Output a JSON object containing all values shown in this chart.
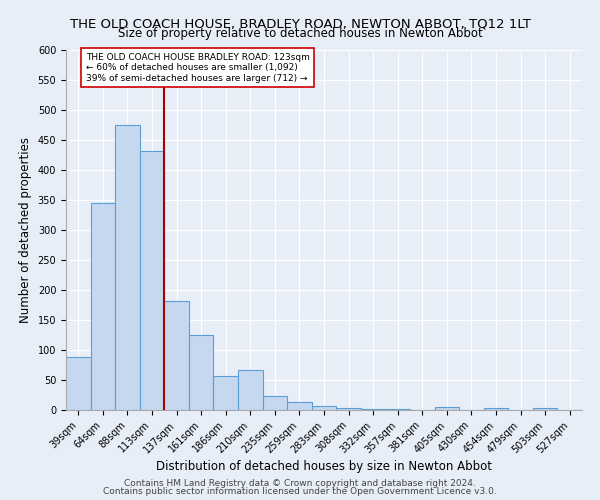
{
  "title": "THE OLD COACH HOUSE, BRADLEY ROAD, NEWTON ABBOT, TQ12 1LT",
  "subtitle": "Size of property relative to detached houses in Newton Abbot",
  "xlabel": "Distribution of detached houses by size in Newton Abbot",
  "ylabel": "Number of detached properties",
  "footer_line1": "Contains HM Land Registry data © Crown copyright and database right 2024.",
  "footer_line2": "Contains public sector information licensed under the Open Government Licence v3.0.",
  "categories": [
    "39sqm",
    "64sqm",
    "88sqm",
    "113sqm",
    "137sqm",
    "161sqm",
    "186sqm",
    "210sqm",
    "235sqm",
    "259sqm",
    "283sqm",
    "308sqm",
    "332sqm",
    "357sqm",
    "381sqm",
    "405sqm",
    "430sqm",
    "454sqm",
    "479sqm",
    "503sqm",
    "527sqm"
  ],
  "values": [
    88,
    345,
    475,
    432,
    182,
    125,
    56,
    67,
    23,
    13,
    7,
    4,
    1,
    1,
    0,
    5,
    0,
    4,
    0,
    4,
    0
  ],
  "bar_color": "#c5d8f0",
  "bar_edge_color": "#5a9fd4",
  "annotation_text": "THE OLD COACH HOUSE BRADLEY ROAD: 123sqm\n← 60% of detached houses are smaller (1,092)\n39% of semi-detached houses are larger (712) →",
  "annotation_box_color": "#ffffff",
  "annotation_box_edge": "#cc0000",
  "red_line_color": "#aa0000",
  "ylim": [
    0,
    600
  ],
  "yticks": [
    0,
    50,
    100,
    150,
    200,
    250,
    300,
    350,
    400,
    450,
    500,
    550,
    600
  ],
  "bg_color": "#e8eef8",
  "grid_color": "#ffffff",
  "title_fontsize": 9.5,
  "subtitle_fontsize": 8.5,
  "axis_label_fontsize": 8.5,
  "tick_fontsize": 7,
  "footer_fontsize": 6.5
}
